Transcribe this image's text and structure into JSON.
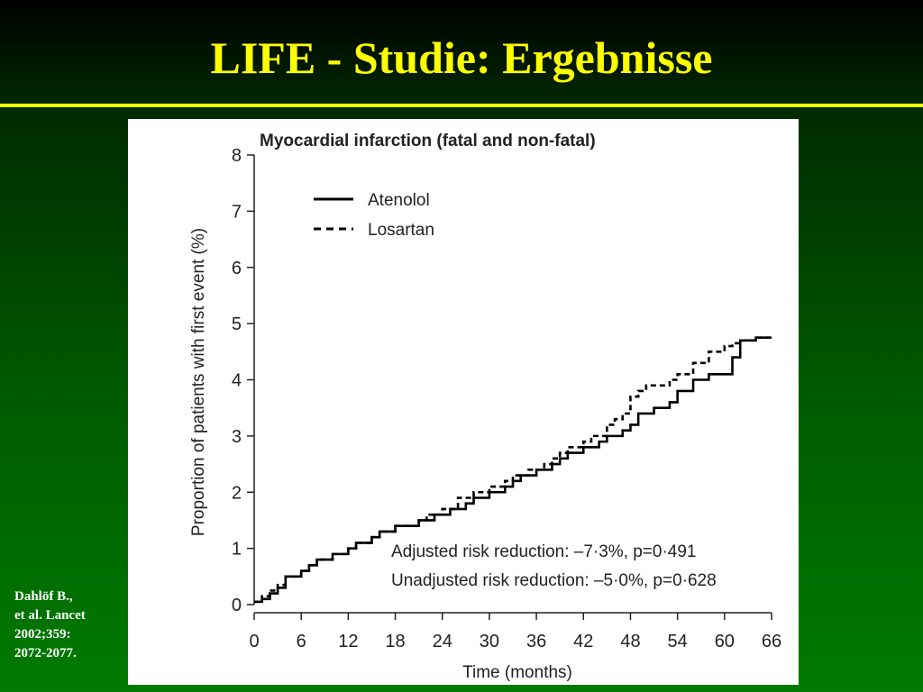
{
  "slide": {
    "title": "LIFE - Studie: Ergebnisse",
    "title_color": "#ffff00",
    "citation_lines": [
      "Dahlöf B.,",
      "et al. Lancet",
      "2002;359:",
      "2072-2077."
    ]
  },
  "chart_data": {
    "type": "line",
    "title": "Myocardial infarction (fatal and non-fatal)",
    "xlabel": "Time (months)",
    "ylabel": "Proportion of patients with first event (%)",
    "xlim": [
      0,
      66
    ],
    "ylim": [
      0,
      8
    ],
    "x_ticks": [
      0,
      6,
      12,
      18,
      24,
      30,
      36,
      42,
      48,
      54,
      60,
      66
    ],
    "y_ticks": [
      0,
      1,
      2,
      3,
      4,
      5,
      6,
      7,
      8
    ],
    "grid": false,
    "legend_position": "top-left",
    "series": [
      {
        "name": "Atenolol",
        "style": "solid",
        "color": "#000000",
        "points": [
          [
            0,
            0.05
          ],
          [
            1,
            0.1
          ],
          [
            2,
            0.2
          ],
          [
            3,
            0.3
          ],
          [
            4,
            0.5
          ],
          [
            6,
            0.6
          ],
          [
            7,
            0.7
          ],
          [
            8,
            0.8
          ],
          [
            10,
            0.9
          ],
          [
            12,
            1.0
          ],
          [
            13,
            1.1
          ],
          [
            15,
            1.2
          ],
          [
            16,
            1.3
          ],
          [
            18,
            1.4
          ],
          [
            21,
            1.5
          ],
          [
            23,
            1.6
          ],
          [
            25,
            1.7
          ],
          [
            27,
            1.8
          ],
          [
            28,
            1.9
          ],
          [
            30,
            2.0
          ],
          [
            32,
            2.1
          ],
          [
            33,
            2.2
          ],
          [
            34,
            2.3
          ],
          [
            36,
            2.4
          ],
          [
            38,
            2.5
          ],
          [
            39,
            2.6
          ],
          [
            40,
            2.7
          ],
          [
            42,
            2.8
          ],
          [
            44,
            2.9
          ],
          [
            45,
            3.0
          ],
          [
            47,
            3.1
          ],
          [
            48,
            3.2
          ],
          [
            49,
            3.4
          ],
          [
            51,
            3.5
          ],
          [
            53,
            3.6
          ],
          [
            54,
            3.8
          ],
          [
            56,
            4.0
          ],
          [
            58,
            4.1
          ],
          [
            60,
            4.1
          ],
          [
            61,
            4.4
          ],
          [
            62,
            4.7
          ],
          [
            64,
            4.75
          ],
          [
            66,
            4.75
          ]
        ]
      },
      {
        "name": "Losartan",
        "style": "dashed",
        "color": "#000000",
        "points": [
          [
            0,
            0.05
          ],
          [
            1,
            0.15
          ],
          [
            2,
            0.25
          ],
          [
            3,
            0.35
          ],
          [
            4,
            0.5
          ],
          [
            6,
            0.6
          ],
          [
            7,
            0.7
          ],
          [
            8,
            0.8
          ],
          [
            10,
            0.9
          ],
          [
            12,
            1.0
          ],
          [
            13,
            1.1
          ],
          [
            15,
            1.2
          ],
          [
            16,
            1.3
          ],
          [
            18,
            1.4
          ],
          [
            21,
            1.5
          ],
          [
            22,
            1.6
          ],
          [
            24,
            1.7
          ],
          [
            26,
            1.9
          ],
          [
            28,
            2.0
          ],
          [
            30,
            2.1
          ],
          [
            32,
            2.2
          ],
          [
            33,
            2.3
          ],
          [
            35,
            2.4
          ],
          [
            37,
            2.5
          ],
          [
            38,
            2.6
          ],
          [
            39,
            2.7
          ],
          [
            40,
            2.8
          ],
          [
            42,
            2.9
          ],
          [
            43,
            3.0
          ],
          [
            45,
            3.2
          ],
          [
            46,
            3.3
          ],
          [
            47,
            3.4
          ],
          [
            48,
            3.7
          ],
          [
            49,
            3.8
          ],
          [
            50,
            3.9
          ],
          [
            53,
            4.0
          ],
          [
            54,
            4.1
          ],
          [
            56,
            4.3
          ],
          [
            58,
            4.5
          ],
          [
            60,
            4.6
          ],
          [
            61,
            4.65
          ],
          [
            62,
            4.7
          ],
          [
            64,
            4.75
          ],
          [
            66,
            4.75
          ]
        ]
      }
    ],
    "annotations": [
      "Adjusted risk reduction: –7·3%, p=0·491",
      "Unadjusted risk reduction: –5·0%, p=0·628"
    ]
  }
}
